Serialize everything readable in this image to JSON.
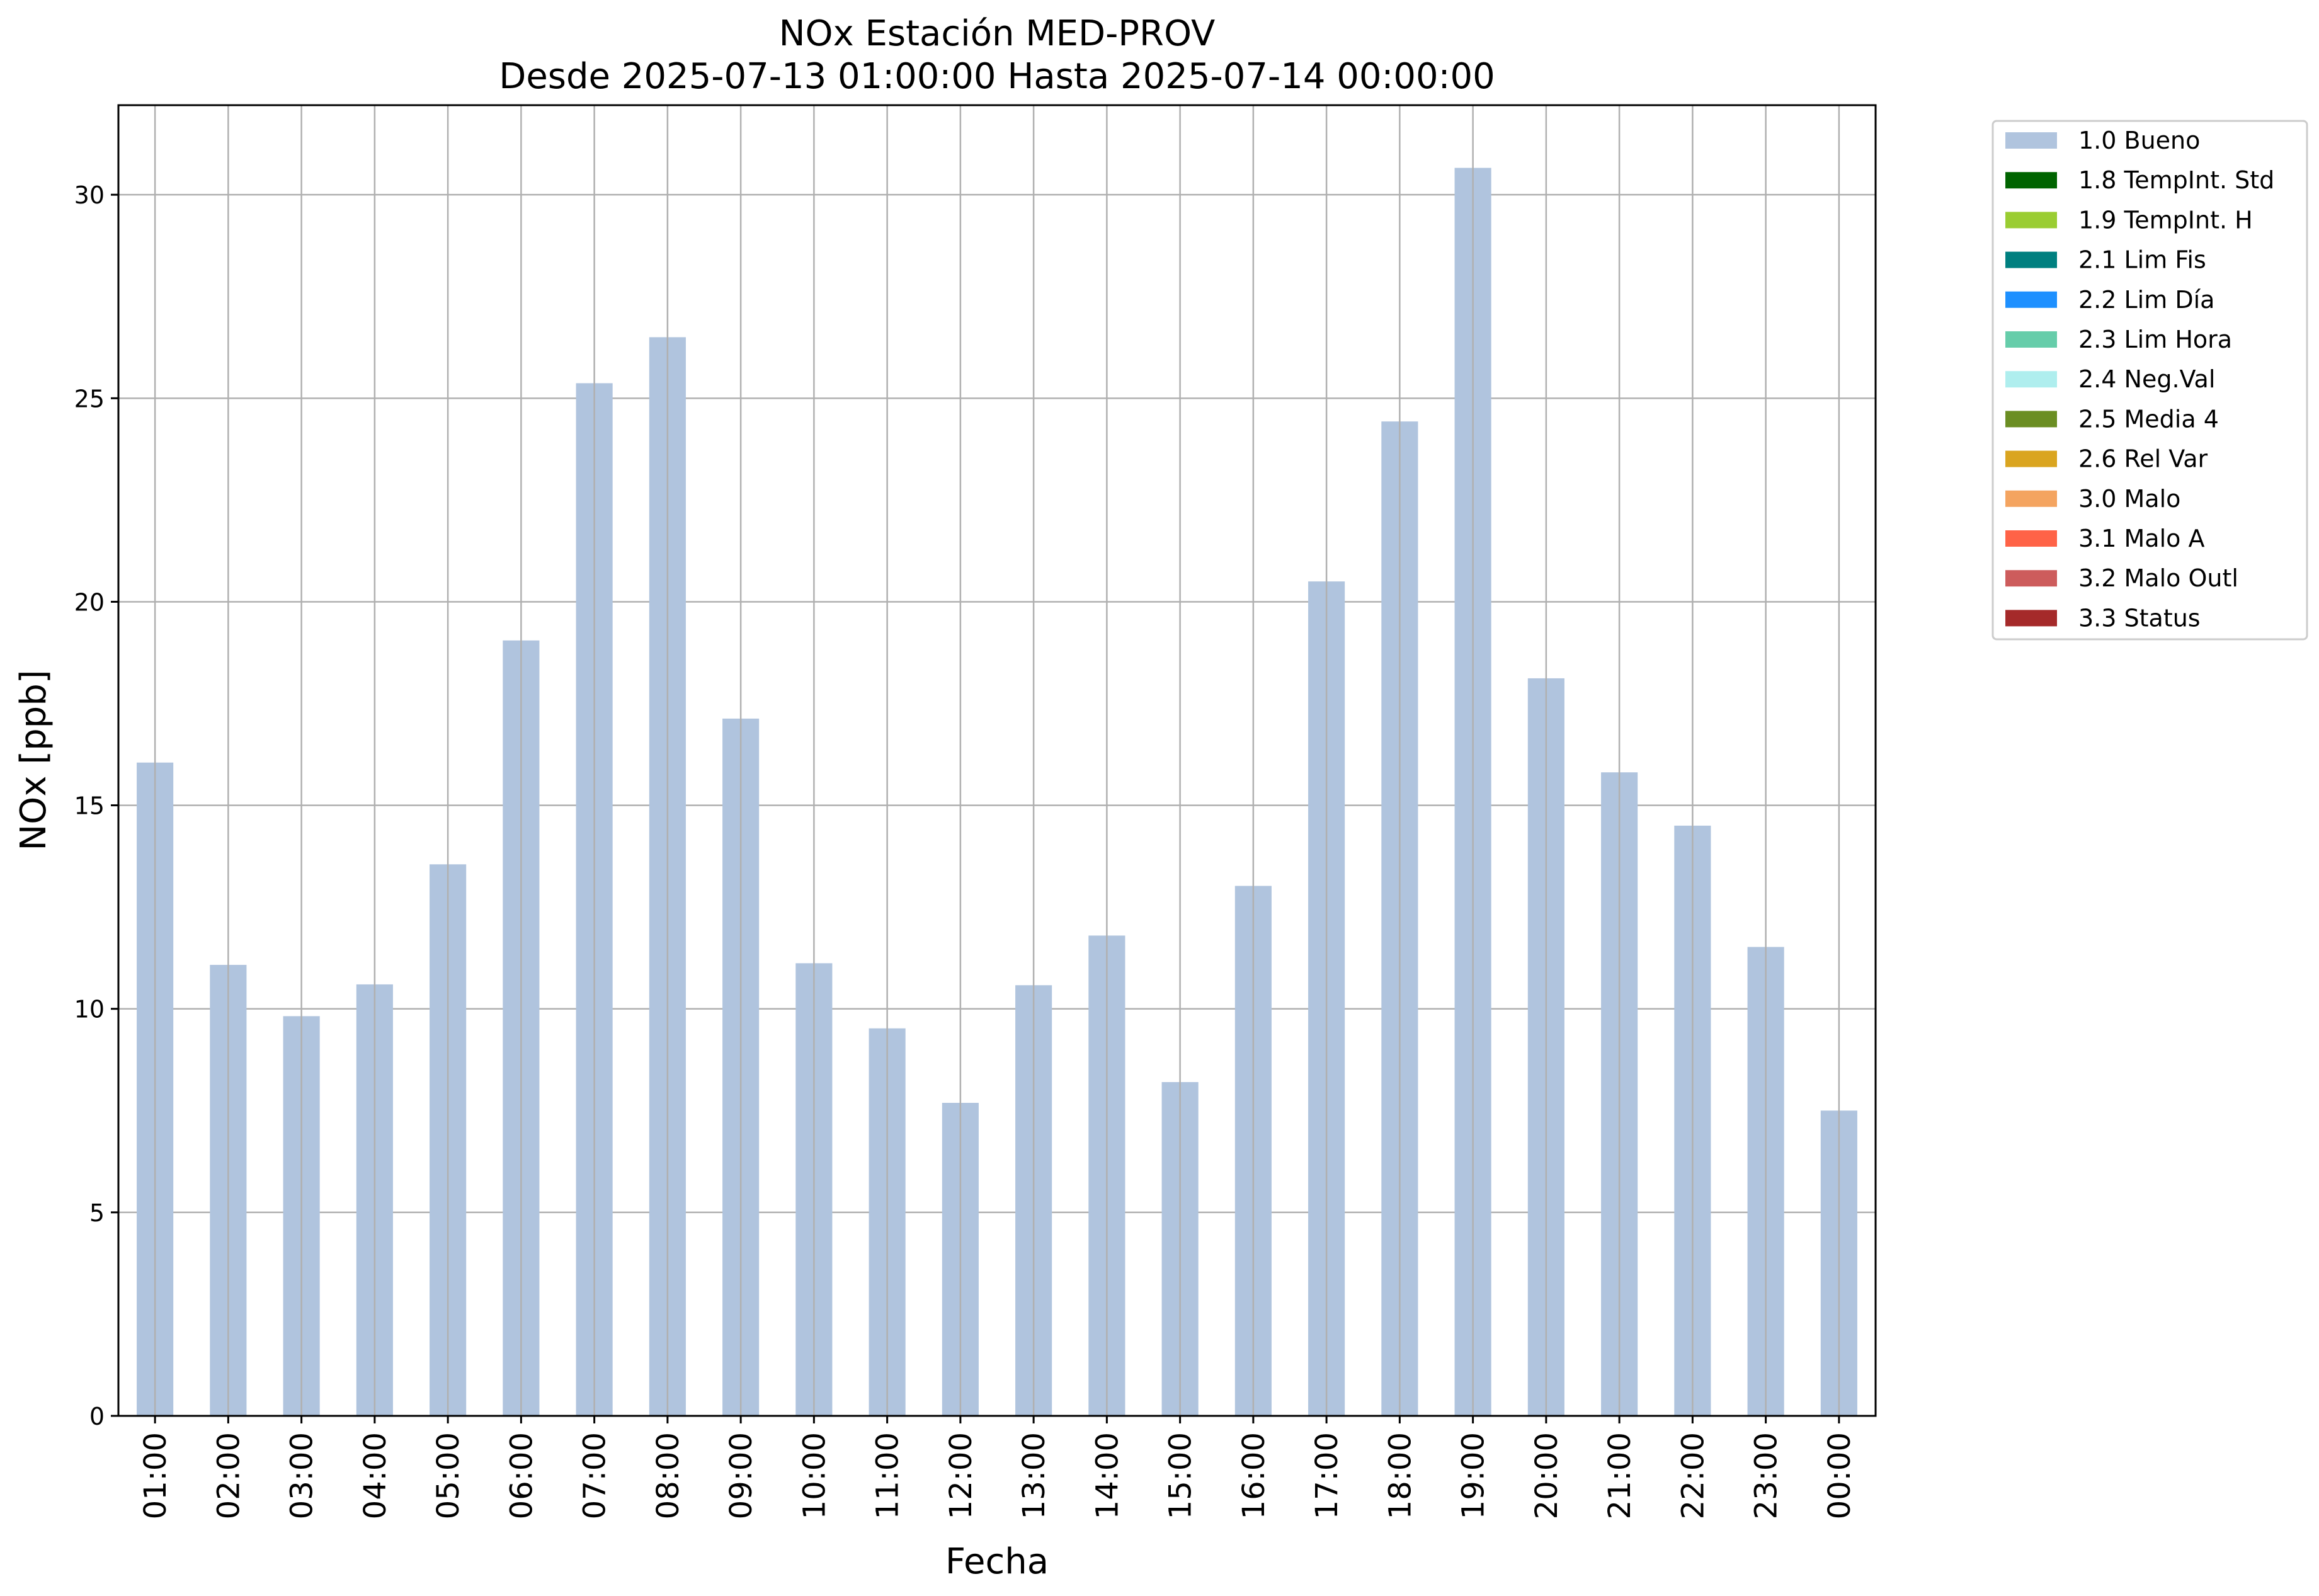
{
  "chart_data": {
    "type": "bar",
    "title": "NOx Estación MED-PROV",
    "subtitle": "Desde 2025-07-13 01:00:00 Hasta 2025-07-14 00:00:00",
    "xlabel": "Fecha",
    "ylabel": "NOx [ppb]",
    "ylim": [
      0,
      32.2
    ],
    "yticks": [
      0,
      5,
      10,
      15,
      20,
      25,
      30
    ],
    "grid": true,
    "legend_position": "outside-top-right",
    "categories": [
      "01:00",
      "02:00",
      "03:00",
      "04:00",
      "05:00",
      "06:00",
      "07:00",
      "08:00",
      "09:00",
      "10:00",
      "11:00",
      "12:00",
      "13:00",
      "14:00",
      "15:00",
      "16:00",
      "17:00",
      "18:00",
      "19:00",
      "20:00",
      "21:00",
      "22:00",
      "23:00",
      "00:00"
    ],
    "series": [
      {
        "name": "1.0 Bueno",
        "color": "#b0c4de",
        "values": [
          16.05,
          11.08,
          9.82,
          10.6,
          13.55,
          19.05,
          25.37,
          26.5,
          17.13,
          11.12,
          9.52,
          7.69,
          10.58,
          11.8,
          8.2,
          13.02,
          20.5,
          24.43,
          30.66,
          18.12,
          15.81,
          14.5,
          11.52,
          7.5
        ]
      }
    ],
    "legend": [
      {
        "label": "1.0 Bueno",
        "color": "#b0c4de"
      },
      {
        "label": "1.8 TempInt. Std",
        "color": "#006400"
      },
      {
        "label": "1.9 TempInt. H",
        "color": "#9acd32"
      },
      {
        "label": "2.1 Lim Fis",
        "color": "#008080"
      },
      {
        "label": "2.2 Lim Día",
        "color": "#1e90ff"
      },
      {
        "label": "2.3 Lim Hora",
        "color": "#66cdaa"
      },
      {
        "label": "2.4 Neg.Val",
        "color": "#afeeee"
      },
      {
        "label": "2.5 Media 4",
        "color": "#6b8e23"
      },
      {
        "label": "2.6 Rel Var",
        "color": "#daa520"
      },
      {
        "label": "3.0 Malo",
        "color": "#f4a460"
      },
      {
        "label": "3.1 Malo A",
        "color": "#ff6347"
      },
      {
        "label": "3.2 Malo Outl",
        "color": "#cd5c5c"
      },
      {
        "label": "3.3 Status",
        "color": "#a52a2a"
      }
    ]
  }
}
